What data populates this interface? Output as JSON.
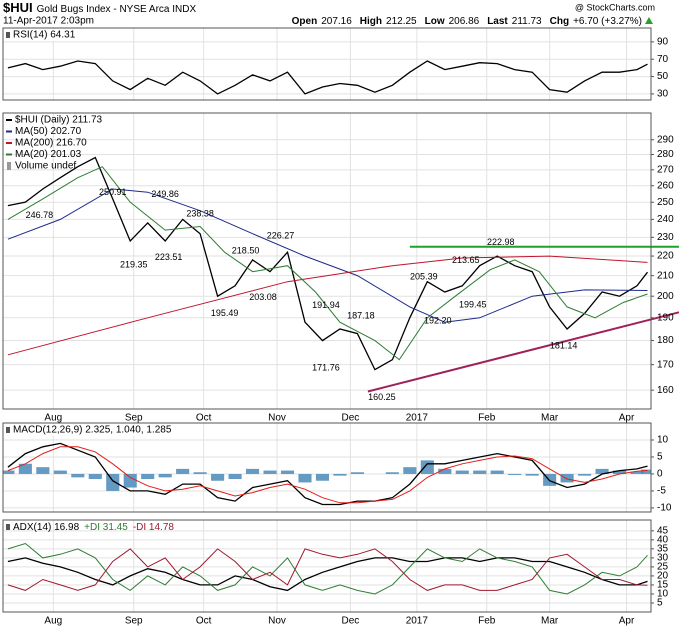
{
  "header": {
    "symbol": "$HUI",
    "name": "Gold Bugs Index - NYSE Arca INDX",
    "date": "11-Apr-2017 2:03pm",
    "quote": [
      {
        "label": "Open",
        "value": 207.16
      },
      {
        "label": "High",
        "value": 212.25
      },
      {
        "label": "Low",
        "value": 206.86
      },
      {
        "label": "Last",
        "value": 211.73
      },
      {
        "label": "Chg",
        "value": "+6.70 (+3.27%)"
      }
    ],
    "watermark": "@ StockCharts.com"
  },
  "chart_data": [
    {
      "type": "line",
      "title": "RSI(14) 64.31",
      "x": [
        0,
        5,
        10,
        15,
        20,
        25,
        30,
        35,
        40,
        45,
        50,
        55,
        60,
        65,
        70,
        75,
        80,
        85,
        90,
        95,
        100,
        105,
        110,
        115,
        120,
        125,
        130,
        135,
        140,
        145,
        150,
        155,
        160,
        165,
        170,
        175,
        180,
        183
      ],
      "series": [
        {
          "color": "#000000",
          "values": [
            60,
            65,
            58,
            62,
            68,
            65,
            45,
            35,
            48,
            40,
            55,
            45,
            30,
            40,
            52,
            45,
            55,
            30,
            38,
            42,
            40,
            32,
            40,
            55,
            68,
            58,
            62,
            66,
            65,
            58,
            55,
            35,
            32,
            45,
            55,
            55,
            58,
            64.31
          ]
        }
      ],
      "xlim": [
        -1.4,
        184
      ],
      "xticks": [
        {
          "value": 13,
          "label": "Aug"
        },
        {
          "value": 36,
          "label": "Sep"
        },
        {
          "value": 56,
          "label": "Oct"
        },
        {
          "value": 77,
          "label": "Nov"
        },
        {
          "value": 98,
          "label": "Dec"
        },
        {
          "value": 117,
          "label": "2017"
        },
        {
          "value": 137,
          "label": "Feb"
        },
        {
          "value": 155,
          "label": "Mar"
        },
        {
          "value": 177,
          "label": "Apr"
        }
      ],
      "ylim": [
        23,
        106
      ],
      "yticks": [
        30,
        50,
        70,
        90
      ],
      "grid": true
    },
    {
      "type": "line",
      "log_scale": true,
      "x": [
        0,
        5,
        10,
        15,
        20,
        25,
        30,
        35,
        40,
        45,
        50,
        55,
        60,
        65,
        70,
        75,
        80,
        85,
        90,
        95,
        100,
        105,
        110,
        115,
        120,
        125,
        130,
        135,
        140,
        145,
        150,
        155,
        160,
        165,
        170,
        175,
        180,
        183
      ],
      "series": [
        {
          "name": "$HUI (Daily) 211.73",
          "color": "#000000",
          "values": [
            248,
            250,
            258,
            265,
            272,
            278,
            252,
            228,
            238,
            228,
            240,
            232,
            200,
            205,
            218,
            212,
            222,
            188,
            180,
            185,
            183,
            168,
            172,
            190,
            207,
            202,
            205,
            215,
            220,
            215,
            212,
            195,
            185,
            192,
            202,
            200,
            205,
            211.73
          ]
        },
        {
          "name": "MA(50) 202.70",
          "color": "#1c2a8c",
          "x": [
            0,
            15,
            30,
            40,
            55,
            70,
            85,
            100,
            115,
            125,
            135,
            150,
            165,
            183
          ],
          "values": [
            229,
            240,
            258,
            256,
            245,
            232,
            220,
            210,
            195,
            188,
            190,
            200,
            203,
            202.7
          ]
        },
        {
          "name": "MA(200) 216.70",
          "color": "#c0142d",
          "x": [
            0,
            40,
            80,
            110,
            130,
            155,
            183
          ],
          "values": [
            174,
            190,
            207,
            215,
            219,
            220,
            216.7
          ]
        },
        {
          "name": "MA(20) 201.03",
          "color": "#2e7d32",
          "x": [
            0,
            10,
            20,
            27,
            35,
            45,
            55,
            62,
            70,
            80,
            88,
            95,
            105,
            112,
            120,
            128,
            138,
            145,
            152,
            160,
            168,
            176,
            183
          ],
          "values": [
            240,
            252,
            265,
            272,
            250,
            234,
            236,
            222,
            212,
            215,
            202,
            188,
            180,
            172,
            190,
            200,
            213,
            218,
            212,
            195,
            190,
            197,
            201.03
          ]
        }
      ],
      "volume_label": "Volume undef",
      "highs": [
        {
          "x": 30,
          "value": 250.91,
          "label": "250.91"
        },
        {
          "x": 45,
          "value": 249.86,
          "label": "249.86"
        },
        {
          "x": 55,
          "value": 238.38,
          "label": "238.38"
        },
        {
          "x": 68,
          "value": 218.5,
          "label": "218.50"
        },
        {
          "x": 78,
          "value": 226.27,
          "label": "226.27"
        },
        {
          "x": 91,
          "value": 191.94,
          "label": "191.94"
        },
        {
          "x": 101,
          "value": 187.18,
          "label": "187.18"
        },
        {
          "x": 119,
          "value": 205.39,
          "label": "205.39"
        },
        {
          "x": 131,
          "value": 213.65,
          "label": "213.65"
        },
        {
          "x": 141,
          "value": 222.98,
          "label": "222.98"
        }
      ],
      "lows": [
        {
          "x": 9,
          "value": 246.78,
          "label": "246.78"
        },
        {
          "x": 36,
          "value": 219.35,
          "label": "219.35"
        },
        {
          "x": 46,
          "value": 223.51,
          "label": "223.51"
        },
        {
          "x": 62,
          "value": 195.49,
          "label": "195.49"
        },
        {
          "x": 73,
          "value": 203.08,
          "label": "203.08"
        },
        {
          "x": 91,
          "value": 171.76,
          "label": "171.76"
        },
        {
          "x": 107,
          "value": 160.25,
          "label": "160.25"
        },
        {
          "x": 123,
          "value": 192.2,
          "label": "192.20"
        },
        {
          "x": 133,
          "value": 199.45,
          "label": "199.45"
        },
        {
          "x": 159,
          "value": 181.14,
          "label": "181.14"
        }
      ],
      "trendlines": [
        {
          "color": "#1fa02a",
          "x": [
            115,
            192
          ],
          "values": [
            224.9,
            224.9
          ]
        },
        {
          "color": "#a0205a",
          "x": [
            103,
            192
          ],
          "values": [
            159.5,
            192.5
          ]
        }
      ],
      "xlim": [
        -1.4,
        184
      ],
      "xticks": [
        {
          "value": 13,
          "label": "Aug"
        },
        {
          "value": 36,
          "label": "Sep"
        },
        {
          "value": 56,
          "label": "Oct"
        },
        {
          "value": 77,
          "label": "Nov"
        },
        {
          "value": 98,
          "label": "Dec"
        },
        {
          "value": 117,
          "label": "2017"
        },
        {
          "value": 137,
          "label": "Feb"
        },
        {
          "value": 155,
          "label": "Mar"
        },
        {
          "value": 177,
          "label": "Apr"
        }
      ],
      "show_xtick_labels": true,
      "ylim": [
        153,
        309
      ],
      "yticks": [
        160,
        170,
        180,
        190,
        200,
        210,
        220,
        230,
        240,
        250,
        260,
        270,
        280,
        290
      ],
      "grid": true
    },
    {
      "type": "macd",
      "title": "MACD(12,26,9) 2.325, 1.040, 1.285",
      "x": [
        0,
        5,
        10,
        15,
        20,
        25,
        30,
        35,
        40,
        45,
        50,
        55,
        60,
        65,
        70,
        75,
        80,
        85,
        90,
        95,
        100,
        105,
        110,
        115,
        120,
        125,
        130,
        135,
        140,
        145,
        150,
        155,
        160,
        165,
        170,
        175,
        180,
        183
      ],
      "series": [
        {
          "color": "#000000",
          "values": [
            2,
            6,
            8,
            9,
            7,
            5,
            -2,
            -5,
            -5,
            -6,
            -3,
            -3,
            -7,
            -8,
            -4,
            -3,
            -2,
            -7,
            -9,
            -9,
            -8,
            -8,
            -7,
            -3,
            3,
            3,
            4,
            5,
            6,
            5,
            4,
            -2,
            -4,
            -3,
            0,
            1,
            1.5,
            2.325
          ]
        },
        {
          "color": "#e0201b",
          "values": [
            1,
            3,
            6,
            8,
            8,
            6.5,
            3,
            -1,
            -3.5,
            -5,
            -4.5,
            -3.5,
            -5,
            -6.5,
            -5.5,
            -4,
            -3,
            -4.5,
            -7,
            -8.5,
            -8.5,
            -8,
            -7.5,
            -5,
            -1,
            1.5,
            3,
            4,
            5,
            5.3,
            4.5,
            1.5,
            -1.5,
            -2.5,
            -1.5,
            0,
            0.8,
            1.04
          ]
        }
      ],
      "histogram": {
        "color": "#4a8ab8",
        "values": [
          1,
          3,
          2,
          1,
          -1,
          -1.5,
          -5,
          -4,
          -1.5,
          -1,
          1.5,
          0.5,
          -2,
          -1.5,
          1.5,
          1,
          1,
          -2.5,
          -2,
          -0.5,
          0.5,
          0,
          0.5,
          2,
          4,
          1.5,
          1,
          1,
          1,
          -0.3,
          -0.5,
          -3.5,
          -2.5,
          -0.5,
          1.5,
          1,
          0.7,
          1.285
        ]
      },
      "xlim": [
        -1.4,
        184
      ],
      "xticks": [
        {
          "value": 13,
          "label": "Aug"
        },
        {
          "value": 36,
          "label": "Sep"
        },
        {
          "value": 56,
          "label": "Oct"
        },
        {
          "value": 77,
          "label": "Nov"
        },
        {
          "value": 98,
          "label": "Dec"
        },
        {
          "value": 117,
          "label": "2017"
        },
        {
          "value": 137,
          "label": "Feb"
        },
        {
          "value": 155,
          "label": "Mar"
        },
        {
          "value": 177,
          "label": "Apr"
        }
      ],
      "ylim": [
        -11.2,
        15
      ],
      "yticks": [
        -10,
        -5,
        0,
        5,
        10
      ],
      "grid": true
    },
    {
      "type": "line",
      "x": [
        0,
        5,
        10,
        15,
        20,
        25,
        30,
        35,
        40,
        45,
        50,
        55,
        60,
        65,
        70,
        75,
        80,
        85,
        90,
        95,
        100,
        105,
        110,
        115,
        120,
        125,
        130,
        135,
        140,
        145,
        150,
        155,
        160,
        165,
        170,
        175,
        180,
        183
      ],
      "series": [
        {
          "name": "ADX(14) 16.98",
          "color": "#000000",
          "values": [
            28,
            30,
            27,
            25,
            22,
            18,
            15,
            20,
            24,
            22,
            18,
            15,
            15,
            20,
            18,
            14,
            12,
            18,
            22,
            25,
            28,
            30,
            30,
            28,
            28,
            30,
            30,
            28,
            30,
            30,
            28,
            28,
            25,
            22,
            18,
            15,
            15,
            16.98
          ]
        },
        {
          "name": "+DI 31.45",
          "color": "#2e7d32",
          "values": [
            35,
            38,
            30,
            32,
            35,
            30,
            18,
            12,
            20,
            15,
            25,
            20,
            12,
            15,
            25,
            20,
            30,
            15,
            12,
            15,
            12,
            10,
            15,
            25,
            35,
            30,
            28,
            35,
            30,
            28,
            25,
            12,
            10,
            15,
            22,
            20,
            25,
            31.45
          ]
        },
        {
          "name": "-DI 14.78",
          "color": "#a0182d",
          "values": [
            15,
            12,
            18,
            15,
            12,
            15,
            28,
            35,
            25,
            30,
            18,
            25,
            35,
            28,
            18,
            22,
            15,
            35,
            32,
            30,
            32,
            35,
            28,
            18,
            12,
            15,
            15,
            12,
            12,
            15,
            18,
            30,
            32,
            25,
            18,
            18,
            15,
            14.78
          ]
        }
      ],
      "xlim": [
        -1.4,
        184
      ],
      "xticks": [
        {
          "value": 13,
          "label": "Aug"
        },
        {
          "value": 36,
          "label": "Sep"
        },
        {
          "value": 56,
          "label": "Oct"
        },
        {
          "value": 77,
          "label": "Nov"
        },
        {
          "value": 98,
          "label": "Dec"
        },
        {
          "value": 117,
          "label": "2017"
        },
        {
          "value": 137,
          "label": "Feb"
        },
        {
          "value": 155,
          "label": "Mar"
        },
        {
          "value": 177,
          "label": "Apr"
        }
      ],
      "show_xtick_labels": true,
      "ylim": [
        0,
        51
      ],
      "yticks": [
        5,
        10,
        15,
        20,
        25,
        30,
        35,
        40,
        45
      ],
      "grid": true
    }
  ]
}
